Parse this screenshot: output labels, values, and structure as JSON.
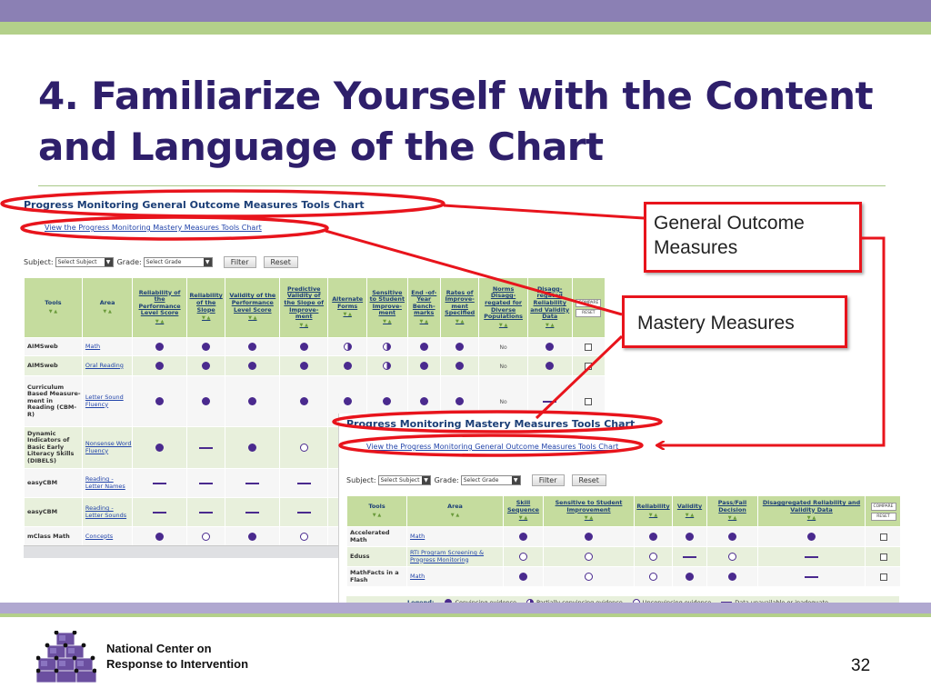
{
  "slide": {
    "title_line1": "4. Familiarize Yourself with the Content",
    "title_line2": "and Language of the Chart",
    "page_number": "32",
    "org_line1": "National Center on",
    "org_line2": "Response to Intervention",
    "logo_icon": "stacked-cubes-logo-icon"
  },
  "callouts": {
    "gom_line1": "General Outcome",
    "gom_line2": "Measures",
    "mastery": "Mastery Measures"
  },
  "colors": {
    "purple_band": "#8b80b4",
    "green_band": "#b3d08a",
    "title": "#2e1f6b",
    "callout_red": "#e8141c",
    "evidence_dot": "#4a2a8e",
    "table_header": "#c5dc9e"
  },
  "gom_chart": {
    "heading": "Progress Monitoring General Outcome Measures Tools Chart",
    "link": "View the Progress Monitoring Mastery Measures Tools Chart",
    "subject_label": "Subject:",
    "subject_value": "Select Subject",
    "grade_label": "Grade:",
    "grade_value": "Select Grade",
    "filter_button": "Filter",
    "reset_button": "Reset",
    "compare_label": "COMPARE",
    "compare_reset": "RESET",
    "headers": [
      "Tools",
      "Area",
      "Reliability of the Performance Level Score",
      "Reliability of the Slope",
      "Validity of the Performance Level Score",
      "Predictive Validity of the Slope of Improve-ment",
      "Alternate Forms",
      "Sensitive to Student Improve-ment",
      "End -of- Year Bench-marks",
      "Rates of Improve-ment Specified",
      "Norms Disagg-regated for Diverse Populations",
      "Disagg-regated Reliability and Validity Data"
    ],
    "rows": [
      {
        "tool": "AIMSweb",
        "area": "Math",
        "cells": [
          "dot",
          "dot",
          "dot",
          "dot",
          "half",
          "half",
          "dot",
          "dot",
          "No",
          "dot"
        ]
      },
      {
        "tool": "AIMSweb",
        "area": "Oral Reading",
        "cells": [
          "dot",
          "dot",
          "dot",
          "dot",
          "dot",
          "half",
          "dot",
          "dot",
          "No",
          "dot"
        ]
      },
      {
        "tool": "Curriculum Based Measure-ment in Reading (CBM-R)",
        "area": "Letter Sound Fluency",
        "cells": [
          "dot",
          "dot",
          "dot",
          "dot",
          "dot",
          "dot",
          "dot",
          "dot",
          "No",
          "dash"
        ]
      },
      {
        "tool": "Dynamic Indicators of Basic Early Literacy Skills (DIBELS)",
        "area": "Nonsense Word Fluency",
        "cells": [
          "dot",
          "dash",
          "dot",
          "ring",
          "",
          "",
          "",
          "",
          "",
          ""
        ]
      },
      {
        "tool": "easyCBM",
        "area": "Reading - Letter Names",
        "cells": [
          "dash",
          "dash",
          "dash",
          "dash",
          "",
          "",
          "",
          "",
          "",
          ""
        ]
      },
      {
        "tool": "easyCBM",
        "area": "Reading - Letter Sounds",
        "cells": [
          "dash",
          "dash",
          "dash",
          "dash",
          "",
          "",
          "",
          "",
          "",
          ""
        ]
      },
      {
        "tool": "mClass Math",
        "area": "Concepts",
        "cells": [
          "dot",
          "ring",
          "dot",
          "ring",
          "",
          "",
          "",
          "",
          "",
          ""
        ]
      }
    ]
  },
  "mm_chart": {
    "heading": "Progress Monitoring Mastery Measures Tools Chart",
    "link": "View the Progress Monitoring General Outcome Measures Tools Chart",
    "subject_label": "Subject:",
    "subject_value": "Select Subject",
    "grade_label": "Grade:",
    "grade_value": "Select Grade",
    "filter_button": "Filter",
    "reset_button": "Reset",
    "compare_label": "COMPARE",
    "compare_reset": "RESET",
    "headers": [
      "Tools",
      "Area",
      "Skill Sequence",
      "Sensitive to Student Improvement",
      "Reliability",
      "Validity",
      "Pass/Fail Decision",
      "Disaggregated Reliability and Validity Data"
    ],
    "rows": [
      {
        "tool": "Accelerated Math",
        "area": "Math",
        "cells": [
          "dot",
          "dot",
          "dot",
          "dot",
          "dot",
          "dot"
        ]
      },
      {
        "tool": "Eduss",
        "area": "RTI Program Screening & Progress Monitoring",
        "cells": [
          "ring",
          "ring",
          "ring",
          "dash",
          "ring",
          "dash"
        ]
      },
      {
        "tool": "MathFacts in a Flash",
        "area": "Math",
        "cells": [
          "dot",
          "ring",
          "ring",
          "dot",
          "dot",
          "dash"
        ]
      }
    ],
    "legend": {
      "title": "Legend:",
      "convincing": "Convincing evidence",
      "partial": "Partially convincing evidence",
      "unconvincing": "Unconvincing evidence",
      "unavailable": "Data unavailable or inadequate"
    }
  }
}
